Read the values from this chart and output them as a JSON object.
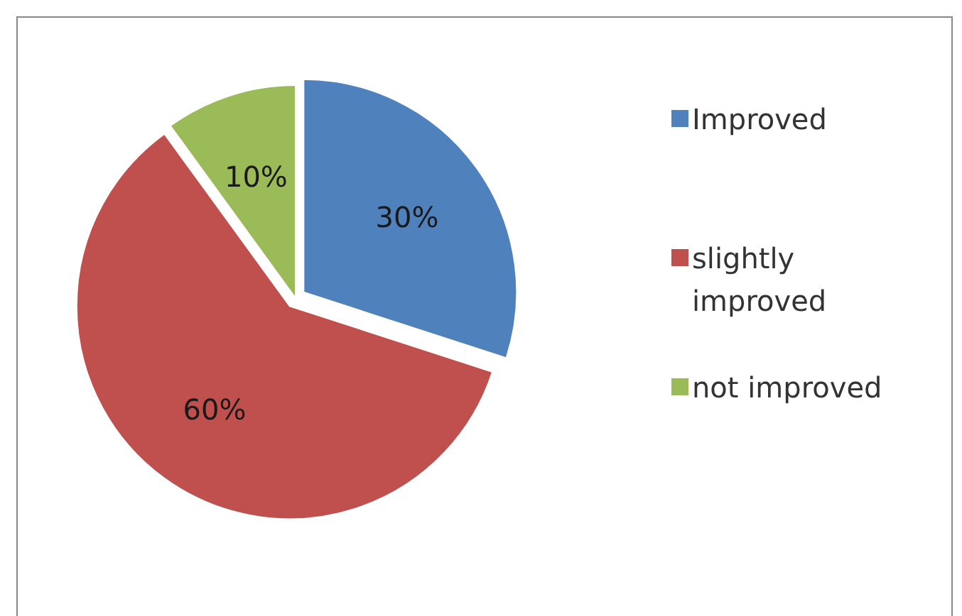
{
  "chart_data": {
    "type": "pie",
    "categories": [
      "Improved",
      "slightly improved",
      "not improved"
    ],
    "values": [
      30,
      60,
      10
    ],
    "colors": [
      "#4f81bd",
      "#c0504d",
      "#9bbb59"
    ],
    "value_labels": [
      "30%",
      "60%",
      "10%"
    ],
    "legend": "right"
  }
}
